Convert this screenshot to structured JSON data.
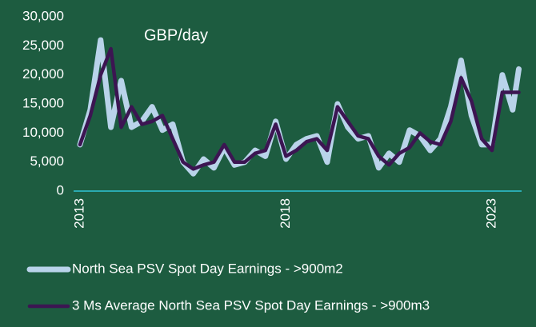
{
  "chart_data": {
    "type": "line",
    "title": "GBP/day",
    "x": [
      2013.0,
      2013.25,
      2013.5,
      2013.75,
      2014.0,
      2014.25,
      2014.5,
      2014.75,
      2015.0,
      2015.25,
      2015.5,
      2015.75,
      2016.0,
      2016.25,
      2016.5,
      2016.75,
      2017.0,
      2017.25,
      2017.5,
      2017.75,
      2018.0,
      2018.25,
      2018.5,
      2018.75,
      2019.0,
      2019.25,
      2019.5,
      2019.75,
      2020.0,
      2020.25,
      2020.5,
      2020.75,
      2021.0,
      2021.25,
      2021.5,
      2021.75,
      2022.0,
      2022.25,
      2022.5,
      2022.75,
      2023.0,
      2023.25,
      2023.5,
      2023.65
    ],
    "series": [
      {
        "name": "North Sea PSV Spot Day Earnings - >900m2",
        "color": "#b9d3ea",
        "values": [
          8000,
          14000,
          26000,
          11000,
          19000,
          11000,
          12000,
          14500,
          10500,
          11500,
          5000,
          3000,
          5500,
          4000,
          7500,
          4500,
          5000,
          7000,
          6000,
          12000,
          5500,
          8000,
          9000,
          9500,
          5000,
          15000,
          11000,
          9000,
          9500,
          4000,
          6500,
          5000,
          10500,
          9500,
          7000,
          9000,
          14500,
          22500,
          13000,
          8000,
          8000,
          20000,
          14000,
          21000
        ]
      },
      {
        "name": "3 Ms Average North Sea PSV Spot Day Earnings - >900m3",
        "color": "#3c1552",
        "values": [
          8000,
          13000,
          20000,
          24500,
          11000,
          14500,
          11500,
          12000,
          13000,
          9000,
          5000,
          3800,
          4500,
          5000,
          8000,
          5000,
          5000,
          6500,
          7000,
          11500,
          6000,
          7000,
          8500,
          9000,
          7000,
          14500,
          12000,
          9500,
          9000,
          6000,
          4500,
          6500,
          7500,
          10000,
          8500,
          8000,
          12000,
          19500,
          15500,
          9000,
          7000,
          17000,
          17000,
          17000
        ]
      }
    ],
    "xlim": [
      2012.8,
      2023.9
    ],
    "xticks": [
      2013,
      2018,
      2023
    ],
    "ylim": [
      0,
      30000
    ],
    "yticks": [
      0,
      {
        "value": 5000,
        "label": "5,000"
      },
      {
        "value": 10000,
        "label": "10,000"
      },
      {
        "value": 15000,
        "label": "15,000"
      },
      {
        "value": 20000,
        "label": "20,000"
      },
      {
        "value": 25000,
        "label": "25,000"
      },
      {
        "value": 30000,
        "label": "30,000"
      }
    ],
    "grid": false
  }
}
